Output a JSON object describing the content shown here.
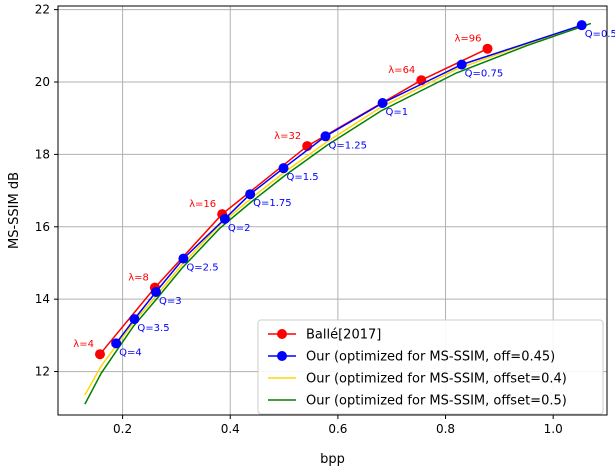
{
  "colors": {
    "balle": "#ff0000",
    "ours": "#0000ff",
    "offset04": "#ffd700",
    "offset05": "#008000",
    "grid": "#b0b0b0",
    "axis": "#000000"
  },
  "chart_data": {
    "type": "line",
    "xlabel": "bpp",
    "ylabel": "MS-SSIM dB",
    "xlim": [
      0.08,
      1.1
    ],
    "ylim": [
      10.8,
      22.1
    ],
    "xticks": [
      0.2,
      0.4,
      0.6,
      0.8,
      1.0
    ],
    "xtick_labels": [
      "0.2",
      "0.4",
      "0.6",
      "0.8",
      "1.0"
    ],
    "yticks": [
      12,
      14,
      16,
      18,
      20,
      22
    ],
    "ytick_labels": [
      "12",
      "14",
      "16",
      "18",
      "20",
      "22"
    ],
    "grid": true,
    "legend_position": "bottom-right",
    "series": [
      {
        "name": "Ballé[2017]",
        "color": "#ff0000",
        "marker": "circle",
        "x": [
          0.158,
          0.26,
          0.385,
          0.543,
          0.755,
          0.878
        ],
        "y": [
          12.48,
          14.32,
          16.35,
          18.23,
          20.05,
          20.92
        ],
        "point_labels": [
          "λ=4",
          "λ=8",
          "λ=16",
          "λ=32",
          "λ=64",
          "λ=96"
        ]
      },
      {
        "name": "Our (optimized for MS-SSIM, off=0.45)",
        "color": "#0000ff",
        "marker": "circle",
        "x": [
          0.188,
          0.222,
          0.262,
          0.313,
          0.39,
          0.437,
          0.499,
          0.577,
          0.683,
          0.83,
          1.053
        ],
        "y": [
          12.78,
          13.45,
          14.2,
          15.12,
          16.22,
          16.9,
          17.62,
          18.5,
          19.42,
          20.48,
          21.57
        ],
        "point_labels": [
          "Q=4",
          "Q=3.5",
          "Q=3",
          "Q=2.5",
          "Q=2",
          "Q=1.75",
          "Q=1.5",
          "Q=1.25",
          "Q=1",
          "Q=0.75",
          "Q=0.5"
        ]
      },
      {
        "name": "Our (optimized for MS-SSIM, offset=0.4)",
        "color": "#ffd700",
        "marker": "none",
        "x": [
          0.13,
          0.16,
          0.19,
          0.22,
          0.26,
          0.31,
          0.38,
          0.44,
          0.5,
          0.58,
          0.68,
          0.82,
          0.95,
          1.06
        ],
        "y": [
          11.35,
          12.15,
          12.75,
          13.35,
          14.05,
          14.95,
          16.05,
          16.8,
          17.5,
          18.35,
          19.3,
          20.35,
          21.05,
          21.55
        ]
      },
      {
        "name": "Our (optimized for MS-SSIM, offset=0.5)",
        "color": "#008000",
        "marker": "none",
        "x": [
          0.13,
          0.16,
          0.19,
          0.22,
          0.26,
          0.31,
          0.38,
          0.44,
          0.5,
          0.58,
          0.68,
          0.82,
          0.95,
          1.07
        ],
        "y": [
          11.1,
          11.95,
          12.6,
          13.25,
          13.95,
          14.85,
          15.95,
          16.7,
          17.4,
          18.25,
          19.2,
          20.25,
          21.0,
          21.62
        ]
      }
    ]
  }
}
